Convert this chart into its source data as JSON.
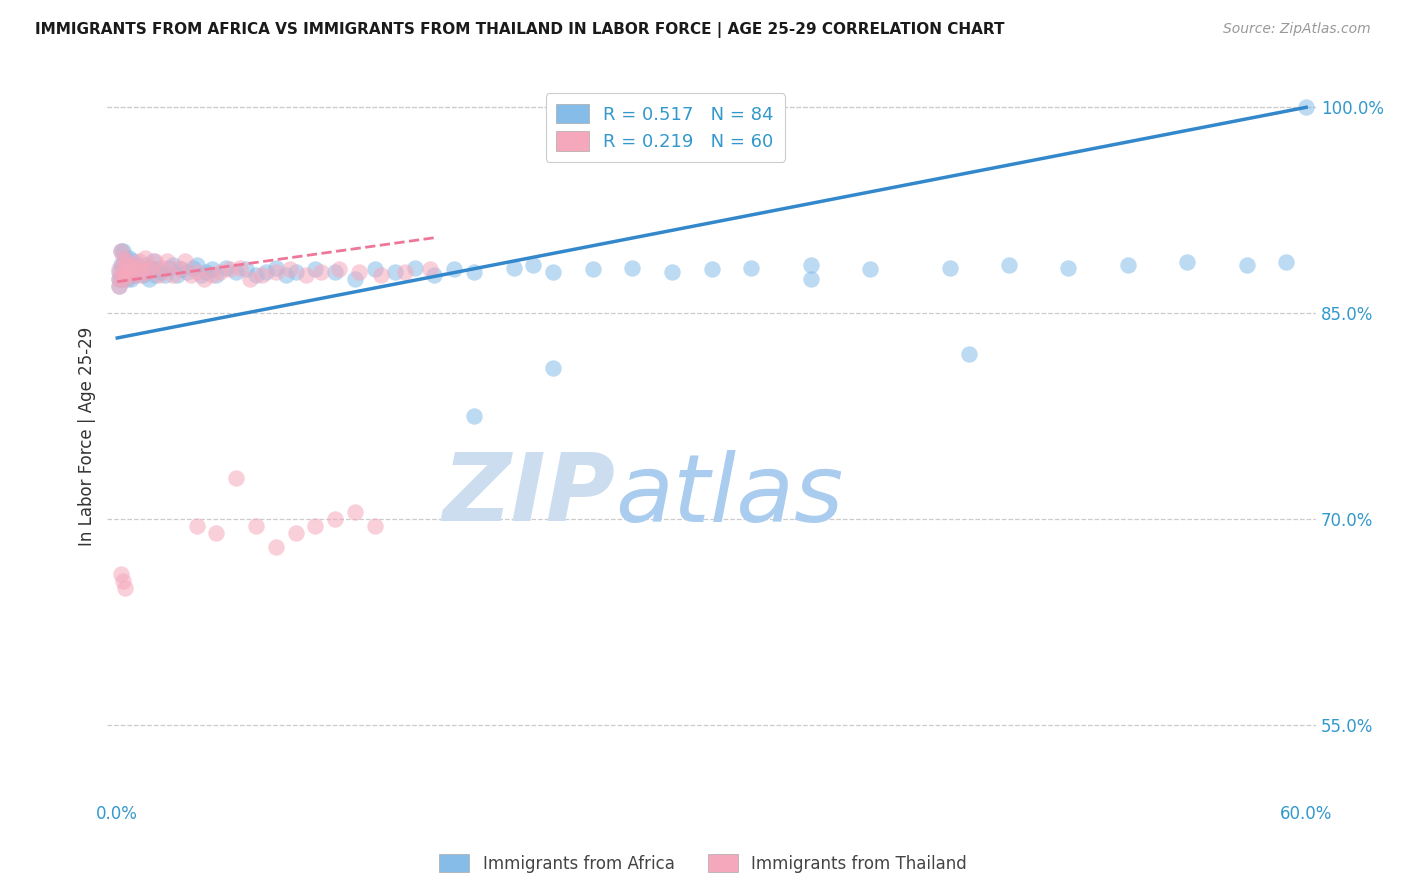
{
  "title": "IMMIGRANTS FROM AFRICA VS IMMIGRANTS FROM THAILAND IN LABOR FORCE | AGE 25-29 CORRELATION CHART",
  "source": "Source: ZipAtlas.com",
  "ylabel": "In Labor Force | Age 25-29",
  "xlim": [
    -0.005,
    0.605
  ],
  "ylim": [
    0.495,
    1.025
  ],
  "xtick_positions": [
    0.0,
    0.1,
    0.2,
    0.3,
    0.4,
    0.5,
    0.6
  ],
  "xtick_labels": [
    "0.0%",
    "",
    "",
    "",
    "",
    "",
    "60.0%"
  ],
  "ytick_values": [
    1.0,
    0.85,
    0.7,
    0.55
  ],
  "ytick_labels": [
    "100.0%",
    "85.0%",
    "70.0%",
    "55.0%"
  ],
  "africa_color": "#85bce8",
  "thailand_color": "#f5a8bc",
  "africa_R": 0.517,
  "africa_N": 84,
  "thailand_R": 0.219,
  "thailand_N": 60,
  "legend_label_africa": "Immigrants from Africa",
  "legend_label_thailand": "Immigrants from Thailand",
  "africa_scatter_x": [
    0.001,
    0.001,
    0.001,
    0.002,
    0.002,
    0.002,
    0.003,
    0.003,
    0.003,
    0.004,
    0.004,
    0.005,
    0.005,
    0.006,
    0.006,
    0.007,
    0.007,
    0.008,
    0.008,
    0.009,
    0.009,
    0.01,
    0.011,
    0.012,
    0.013,
    0.014,
    0.015,
    0.016,
    0.017,
    0.018,
    0.019,
    0.02,
    0.022,
    0.024,
    0.026,
    0.028,
    0.03,
    0.032,
    0.035,
    0.038,
    0.04,
    0.042,
    0.045,
    0.048,
    0.05,
    0.055,
    0.06,
    0.065,
    0.07,
    0.075,
    0.08,
    0.085,
    0.09,
    0.1,
    0.11,
    0.12,
    0.13,
    0.14,
    0.15,
    0.16,
    0.17,
    0.18,
    0.2,
    0.21,
    0.22,
    0.24,
    0.26,
    0.28,
    0.3,
    0.32,
    0.35,
    0.38,
    0.42,
    0.45,
    0.48,
    0.51,
    0.54,
    0.57,
    0.59,
    0.6,
    0.43,
    0.35,
    0.18,
    0.22
  ],
  "africa_scatter_y": [
    0.88,
    0.875,
    0.87,
    0.895,
    0.885,
    0.875,
    0.895,
    0.885,
    0.875,
    0.89,
    0.88,
    0.885,
    0.875,
    0.89,
    0.88,
    0.885,
    0.875,
    0.888,
    0.878,
    0.883,
    0.878,
    0.885,
    0.88,
    0.883,
    0.878,
    0.885,
    0.88,
    0.875,
    0.883,
    0.888,
    0.878,
    0.882,
    0.88,
    0.878,
    0.883,
    0.885,
    0.878,
    0.882,
    0.88,
    0.883,
    0.885,
    0.878,
    0.88,
    0.882,
    0.878,
    0.883,
    0.88,
    0.882,
    0.878,
    0.88,
    0.883,
    0.878,
    0.88,
    0.882,
    0.88,
    0.875,
    0.882,
    0.88,
    0.883,
    0.878,
    0.882,
    0.88,
    0.883,
    0.885,
    0.88,
    0.882,
    0.883,
    0.88,
    0.882,
    0.883,
    0.885,
    0.882,
    0.883,
    0.885,
    0.883,
    0.885,
    0.887,
    0.885,
    0.887,
    1.0,
    0.82,
    0.875,
    0.775,
    0.81
  ],
  "thailand_scatter_x": [
    0.001,
    0.001,
    0.001,
    0.002,
    0.002,
    0.003,
    0.003,
    0.004,
    0.004,
    0.005,
    0.005,
    0.006,
    0.007,
    0.008,
    0.009,
    0.01,
    0.011,
    0.012,
    0.013,
    0.014,
    0.015,
    0.017,
    0.019,
    0.021,
    0.023,
    0.025,
    0.028,
    0.031,
    0.034,
    0.037,
    0.04,
    0.044,
    0.048,
    0.052,
    0.057,
    0.062,
    0.067,
    0.073,
    0.08,
    0.087,
    0.095,
    0.103,
    0.112,
    0.122,
    0.133,
    0.145,
    0.158,
    0.002,
    0.003,
    0.004,
    0.06,
    0.04,
    0.05,
    0.07,
    0.08,
    0.09,
    0.1,
    0.11,
    0.12,
    0.13
  ],
  "thailand_scatter_y": [
    0.882,
    0.875,
    0.87,
    0.895,
    0.878,
    0.89,
    0.88,
    0.885,
    0.875,
    0.888,
    0.878,
    0.882,
    0.88,
    0.885,
    0.878,
    0.883,
    0.888,
    0.878,
    0.882,
    0.89,
    0.88,
    0.883,
    0.888,
    0.878,
    0.883,
    0.888,
    0.878,
    0.883,
    0.888,
    0.878,
    0.88,
    0.875,
    0.878,
    0.88,
    0.882,
    0.883,
    0.875,
    0.878,
    0.88,
    0.882,
    0.878,
    0.88,
    0.882,
    0.88,
    0.878,
    0.88,
    0.882,
    0.66,
    0.655,
    0.65,
    0.73,
    0.695,
    0.69,
    0.695,
    0.68,
    0.69,
    0.695,
    0.7,
    0.705,
    0.695
  ],
  "background_color": "#ffffff",
  "grid_color": "#cccccc",
  "title_color": "#1a1a1a",
  "axis_label_color": "#333333",
  "tick_color": "#3399cc",
  "africa_line_color": "#3388cc",
  "thailand_line_color": "#ee7799",
  "watermark_zip": "ZIP",
  "watermark_atlas": "atlas",
  "watermark_color_zip": "#ccddf0",
  "watermark_color_atlas": "#aaccee",
  "watermark_fontsize": 68
}
